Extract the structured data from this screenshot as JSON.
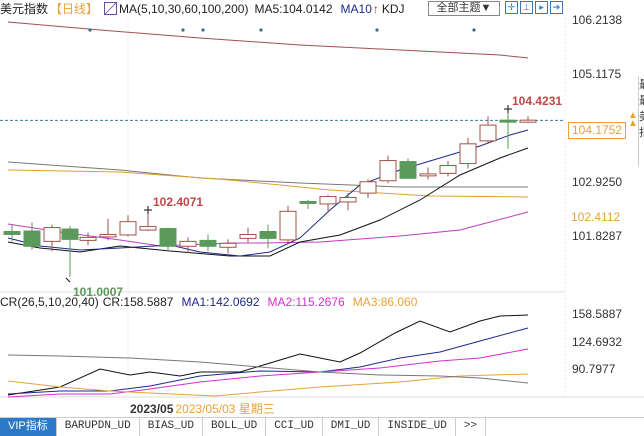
{
  "header": {
    "title": "美元指数",
    "period": "【日线】",
    "ma_params": "MA(5,10,30,60,100,200)",
    "ma5": "MA5:104.0142",
    "ma10": "MA10",
    "ma10_arrow": "↑",
    "kdj": "KDJ",
    "theme_button": "全部主题▼",
    "tool_icons": [
      "crosshair-icon",
      "zoom-range-icon",
      "play-icon",
      "exit-icon"
    ]
  },
  "price_axis": {
    "ticks": [
      "106.2138",
      "105.1175",
      "102.9250",
      "101.8287"
    ],
    "current_price": "104.1752",
    "orange_level": "102.4112"
  },
  "annotations": {
    "high_right": "104.4231",
    "high_left": "102.4071",
    "low_left": "101.0007"
  },
  "cr_panel": {
    "params": "CR(26,5,10,20,40)",
    "cr": "CR:158.5887",
    "ma1": "MA1:142.0692",
    "ma2": "MA2:115.2676",
    "ma3": "MA3:86.060",
    "ticks": [
      "158.5887",
      "124.6932",
      "90.7977"
    ]
  },
  "date_bar": {
    "month": "2023/05",
    "date": "2023/05/03 星期三"
  },
  "tabs": [
    {
      "label": "VIP指标",
      "active": true
    },
    {
      "label": "BARUPDN_UD"
    },
    {
      "label": "BIAS_UD"
    },
    {
      "label": "BOLL_UD"
    },
    {
      "label": "CCI_UD"
    },
    {
      "label": "DMI_UD"
    },
    {
      "label": "INSIDE_UD"
    },
    {
      "label": ">>"
    }
  ],
  "right_strip": [
    "最",
    "最",
    "美",
    "指"
  ],
  "colors": {
    "up": "#a0524a",
    "down": "#5a9a5a",
    "ma_black": "#111111",
    "ma_navy": "#1d2a8a",
    "ma_magenta": "#c03cc0",
    "ma_orange": "#e0a030",
    "ma_gray": "#777777",
    "ma_brown": "#a05050",
    "accent_orange": "#e8a23a"
  },
  "chart_data": [
    {
      "type": "candlestick",
      "title": "美元指数 日线",
      "yaxis_ticks": [
        106.2138,
        105.1175,
        102.925,
        101.8287
      ],
      "ylim": [
        100.9,
        106.3
      ],
      "current_price": 104.1752,
      "candles": [
        {
          "o": 101.92,
          "h": 102.06,
          "l": 101.72,
          "c": 101.86
        },
        {
          "o": 101.93,
          "h": 102.1,
          "l": 101.55,
          "c": 101.62
        },
        {
          "o": 101.72,
          "h": 102.06,
          "l": 101.52,
          "c": 102.0
        },
        {
          "o": 101.97,
          "h": 102.03,
          "l": 101.0,
          "c": 101.76
        },
        {
          "o": 101.74,
          "h": 101.9,
          "l": 101.64,
          "c": 101.8
        },
        {
          "o": 101.81,
          "h": 102.18,
          "l": 101.74,
          "c": 101.86
        },
        {
          "o": 101.85,
          "h": 102.25,
          "l": 101.82,
          "c": 102.12
        },
        {
          "o": 101.95,
          "h": 102.41,
          "l": 101.93,
          "c": 102.02
        },
        {
          "o": 101.98,
          "h": 102.0,
          "l": 101.52,
          "c": 101.62
        },
        {
          "o": 101.62,
          "h": 101.8,
          "l": 101.48,
          "c": 101.72
        },
        {
          "o": 101.74,
          "h": 101.86,
          "l": 101.52,
          "c": 101.62
        },
        {
          "o": 101.6,
          "h": 101.76,
          "l": 101.47,
          "c": 101.68
        },
        {
          "o": 101.78,
          "h": 102.0,
          "l": 101.7,
          "c": 101.86
        },
        {
          "o": 101.92,
          "h": 102.06,
          "l": 101.58,
          "c": 101.78
        },
        {
          "o": 101.75,
          "h": 102.44,
          "l": 101.68,
          "c": 102.33
        },
        {
          "o": 102.53,
          "h": 102.56,
          "l": 102.38,
          "c": 102.5
        },
        {
          "o": 102.53,
          "h": 102.56,
          "l": 102.38,
          "c": 102.5
        },
        {
          "o": 102.48,
          "h": 102.66,
          "l": 102.3,
          "c": 102.63
        },
        {
          "o": 102.52,
          "h": 102.7,
          "l": 102.35,
          "c": 102.61
        },
        {
          "o": 102.7,
          "h": 102.98,
          "l": 102.6,
          "c": 102.93
        },
        {
          "o": 102.95,
          "h": 103.46,
          "l": 102.9,
          "c": 103.36
        },
        {
          "o": 103.34,
          "h": 103.4,
          "l": 103.0,
          "c": 103.0
        },
        {
          "o": 103.05,
          "h": 103.22,
          "l": 102.98,
          "c": 103.09
        },
        {
          "o": 103.1,
          "h": 103.35,
          "l": 103.04,
          "c": 103.26
        },
        {
          "o": 103.3,
          "h": 103.82,
          "l": 103.2,
          "c": 103.7
        },
        {
          "o": 103.76,
          "h": 104.26,
          "l": 103.7,
          "c": 104.08
        },
        {
          "o": 104.18,
          "h": 104.42,
          "l": 103.6,
          "c": 104.15
        },
        {
          "o": 104.16,
          "h": 104.26,
          "l": 104.12,
          "c": 104.18
        }
      ],
      "ma_lines": [
        {
          "name": "MA5",
          "color": "#111111"
        },
        {
          "name": "MA10",
          "color": "#1d2a8a"
        },
        {
          "name": "MA30",
          "color": "#c03cc0"
        },
        {
          "name": "MA60",
          "color": "#e0a030"
        },
        {
          "name": "MA100",
          "color": "#777777"
        },
        {
          "name": "MA200",
          "color": "#a05050"
        }
      ],
      "annotations": [
        {
          "label": "104.4231",
          "type": "high"
        },
        {
          "label": "102.4071",
          "type": "local-high"
        },
        {
          "label": "101.0007",
          "type": "low"
        }
      ]
    },
    {
      "type": "line",
      "title": "CR(26,5,10,20,40)",
      "yaxis_ticks": [
        158.5887,
        124.6932,
        90.7977
      ],
      "series": [
        {
          "name": "CR",
          "value": 158.5887,
          "color": "#111111"
        },
        {
          "name": "MA1",
          "value": 142.0692,
          "color": "#1d2a8a"
        },
        {
          "name": "MA2",
          "value": 115.2676,
          "color": "#d42fd4"
        },
        {
          "name": "MA3",
          "value": 86.06,
          "color": "#e8a23a"
        }
      ]
    }
  ]
}
